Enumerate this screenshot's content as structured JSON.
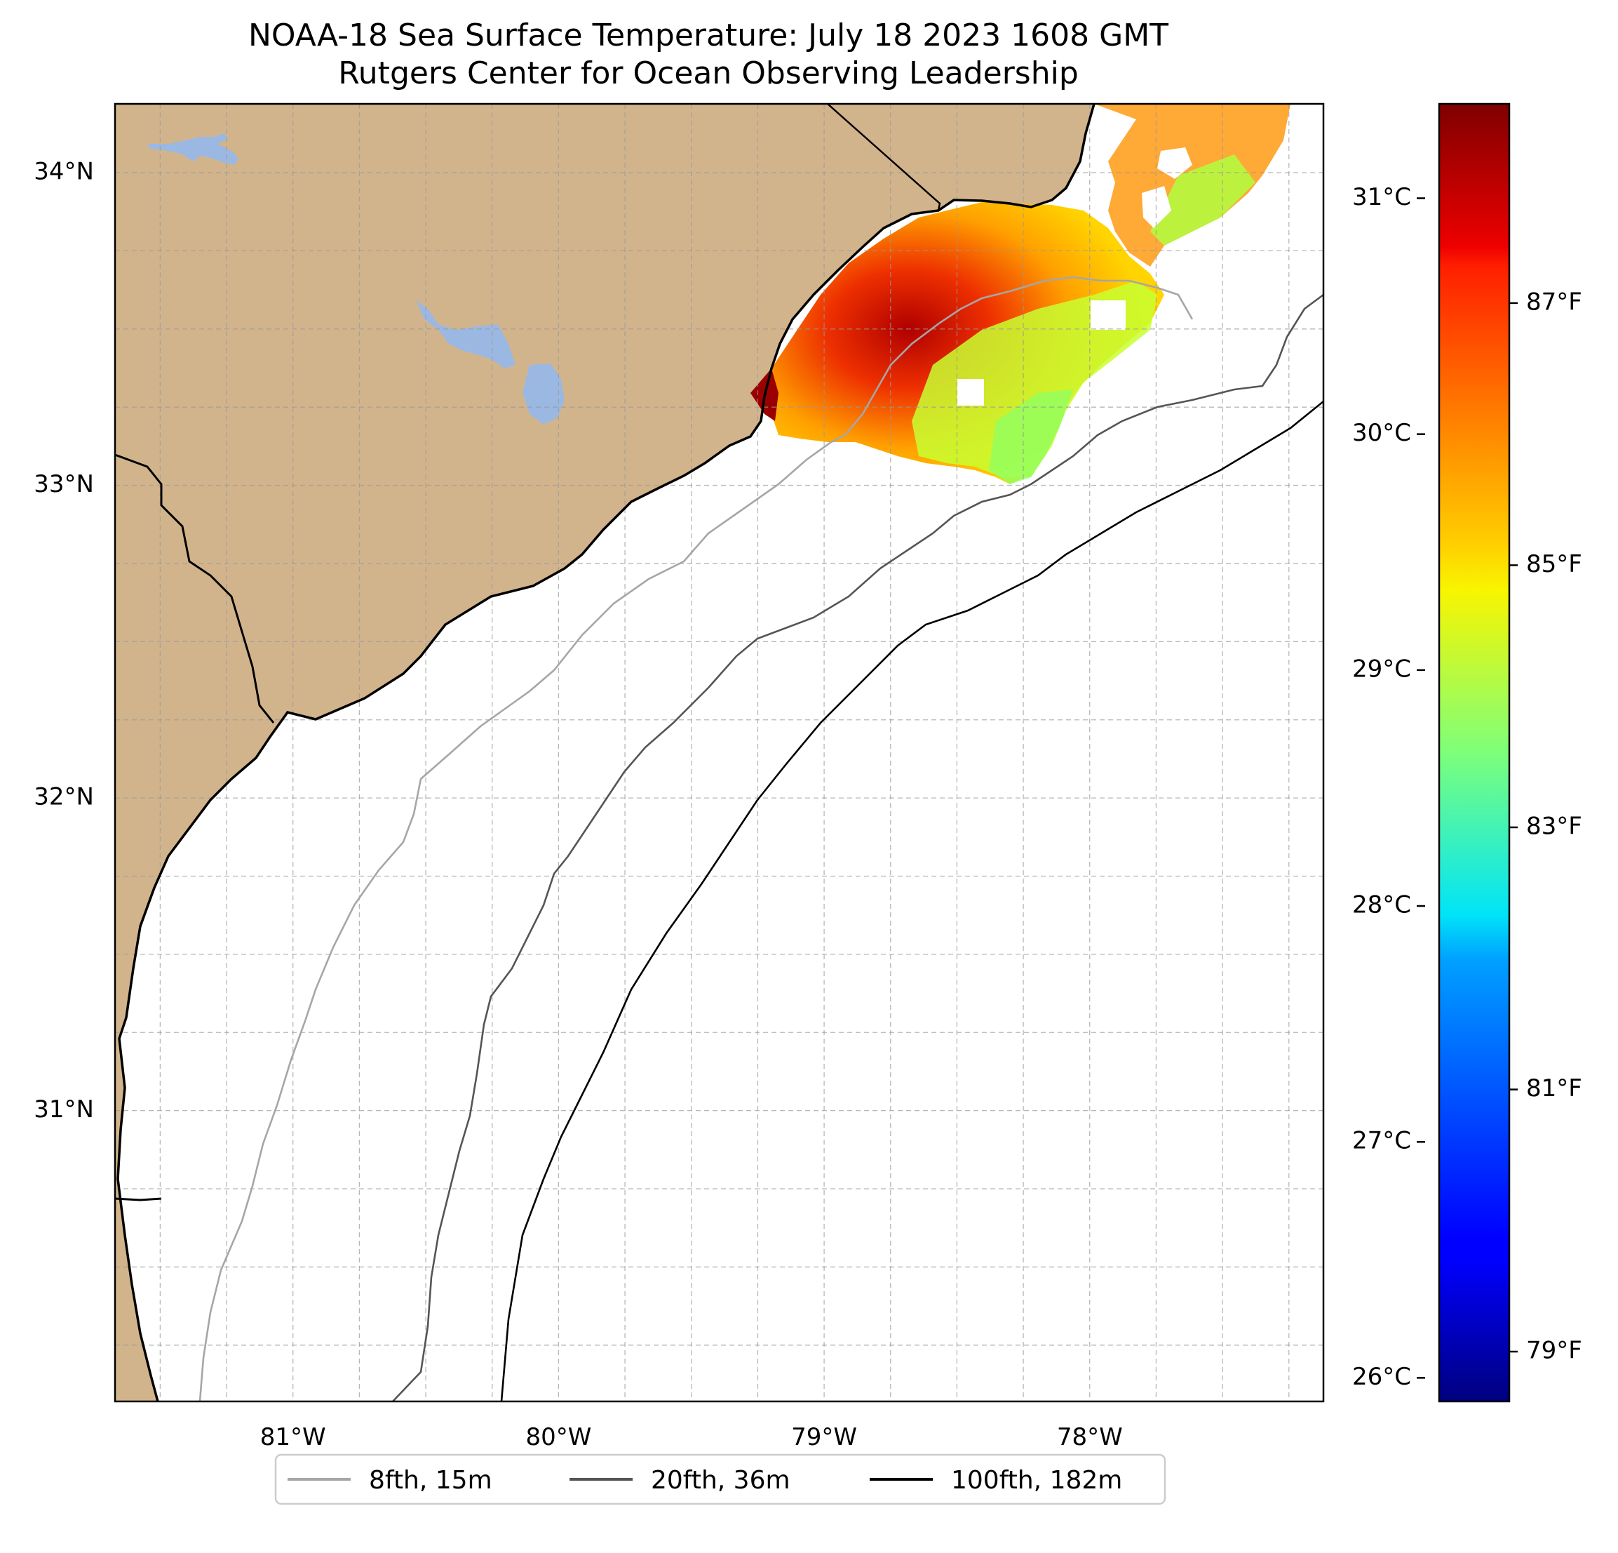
{
  "title": {
    "line1": "NOAA-18 Sea Surface Temperature: July 18 2023 1608 GMT",
    "line2": "Rutgers Center for Ocean Observing Leadership"
  },
  "map": {
    "lon_range": [
      -81.67,
      -77.12
    ],
    "lat_range": [
      30.07,
      34.22
    ],
    "land_color": "#d2b48c",
    "water_body_color": "#9bb8e3",
    "grid": "dashed",
    "lat_ticks": [
      {
        "value": 34,
        "label": "34°N"
      },
      {
        "value": 33,
        "label": "33°N"
      },
      {
        "value": 32,
        "label": "32°N"
      },
      {
        "value": 31,
        "label": "31°N"
      }
    ],
    "lon_ticks": [
      {
        "value": -81,
        "label": "81°W"
      },
      {
        "value": -80,
        "label": "80°W"
      },
      {
        "value": -79,
        "label": "79°W"
      },
      {
        "value": -78,
        "label": "78°W"
      }
    ]
  },
  "colorbar": {
    "colormap": "jet",
    "range_c": [
      25.9,
      31.4
    ],
    "celsius_ticks": [
      {
        "value": 31,
        "label": "31°C"
      },
      {
        "value": 30,
        "label": "30°C"
      },
      {
        "value": 29,
        "label": "29°C"
      },
      {
        "value": 28,
        "label": "28°C"
      },
      {
        "value": 27,
        "label": "27°C"
      },
      {
        "value": 26,
        "label": "26°C"
      }
    ],
    "fahrenheit_ticks": [
      {
        "value": 87,
        "label": "87°F"
      },
      {
        "value": 85,
        "label": "85°F"
      },
      {
        "value": 83,
        "label": "83°F"
      },
      {
        "value": 81,
        "label": "81°F"
      },
      {
        "value": 79,
        "label": "79°F"
      }
    ]
  },
  "legend": {
    "position": "bottom-center",
    "entries": [
      {
        "label": "8fth, 15m",
        "color": "#a6a6a6"
      },
      {
        "label": "20fth, 36m",
        "color": "#555555"
      },
      {
        "label": "100fth, 182m",
        "color": "#000000"
      }
    ]
  }
}
